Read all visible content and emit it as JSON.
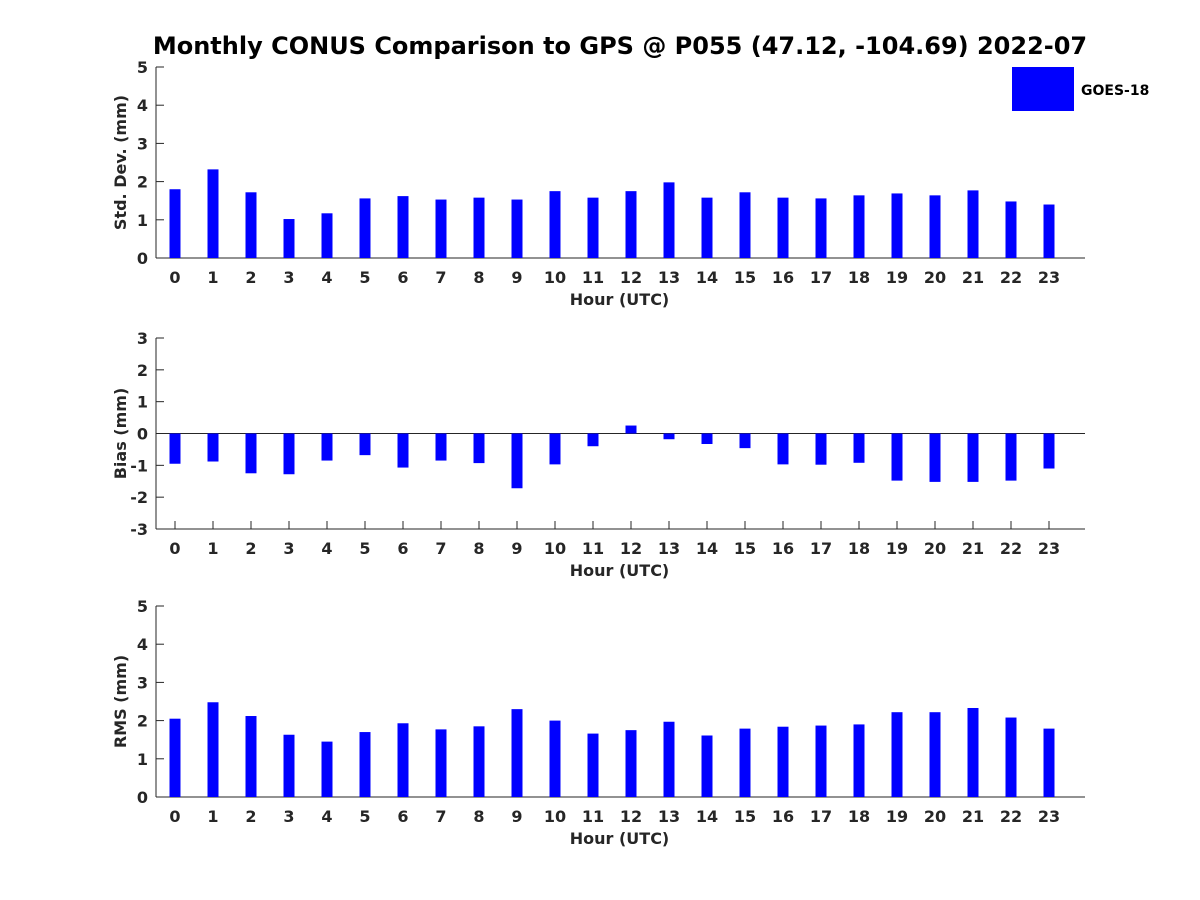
{
  "title": "Monthly CONUS Comparison to GPS @ P055 (47.12, -104.69) 2022-07",
  "legend": {
    "label": "GOES-18",
    "color": "#0000ff",
    "placement": "top-right"
  },
  "chart_data": [
    {
      "type": "bar",
      "categories": [
        "0",
        "1",
        "2",
        "3",
        "4",
        "5",
        "6",
        "7",
        "8",
        "9",
        "10",
        "11",
        "12",
        "13",
        "14",
        "15",
        "16",
        "17",
        "18",
        "19",
        "20",
        "21",
        "22",
        "23"
      ],
      "series": [
        {
          "name": "GOES-18",
          "values": [
            1.8,
            2.32,
            1.72,
            1.02,
            1.17,
            1.56,
            1.62,
            1.53,
            1.58,
            1.53,
            1.75,
            1.58,
            1.75,
            1.98,
            1.58,
            1.72,
            1.58,
            1.56,
            1.64,
            1.69,
            1.64,
            1.77,
            1.48,
            1.4
          ]
        }
      ],
      "xlabel": "Hour (UTC)",
      "ylabel": "Std. Dev. (mm)",
      "ylim": [
        0,
        5
      ],
      "yticks": [
        0,
        1,
        2,
        3,
        4,
        5
      ],
      "grid": false
    },
    {
      "type": "bar",
      "categories": [
        "0",
        "1",
        "2",
        "3",
        "4",
        "5",
        "6",
        "7",
        "8",
        "9",
        "10",
        "11",
        "12",
        "13",
        "14",
        "15",
        "16",
        "17",
        "18",
        "19",
        "20",
        "21",
        "22",
        "23"
      ],
      "series": [
        {
          "name": "GOES-18",
          "values": [
            -0.95,
            -0.88,
            -1.25,
            -1.28,
            -0.85,
            -0.68,
            -1.07,
            -0.85,
            -0.93,
            -1.72,
            -0.97,
            -0.4,
            0.25,
            -0.18,
            -0.33,
            -0.46,
            -0.97,
            -0.98,
            -0.92,
            -1.48,
            -1.52,
            -1.52,
            -1.48,
            -1.1
          ]
        }
      ],
      "xlabel": "Hour (UTC)",
      "ylabel": "Bias (mm)",
      "ylim": [
        -3,
        3
      ],
      "yticks": [
        -3,
        -2,
        -1,
        0,
        1,
        2,
        3
      ],
      "grid": false
    },
    {
      "type": "bar",
      "categories": [
        "0",
        "1",
        "2",
        "3",
        "4",
        "5",
        "6",
        "7",
        "8",
        "9",
        "10",
        "11",
        "12",
        "13",
        "14",
        "15",
        "16",
        "17",
        "18",
        "19",
        "20",
        "21",
        "22",
        "23"
      ],
      "series": [
        {
          "name": "GOES-18",
          "values": [
            2.05,
            2.48,
            2.12,
            1.63,
            1.45,
            1.7,
            1.93,
            1.77,
            1.85,
            2.3,
            2.0,
            1.66,
            1.75,
            1.97,
            1.61,
            1.79,
            1.84,
            1.87,
            1.9,
            2.22,
            2.22,
            2.33,
            2.08,
            1.79
          ]
        }
      ],
      "xlabel": "Hour (UTC)",
      "ylabel": "RMS (mm)",
      "ylim": [
        0,
        5
      ],
      "yticks": [
        0,
        1,
        2,
        3,
        4,
        5
      ],
      "grid": false
    }
  ]
}
